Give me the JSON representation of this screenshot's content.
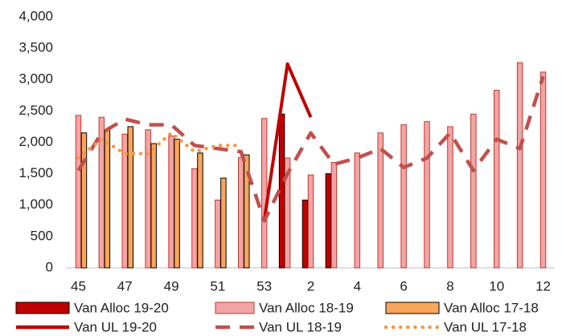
{
  "chart_data": {
    "type": "combo",
    "categories": [
      "45",
      null,
      "47",
      null,
      "49",
      null,
      "51",
      null,
      "53",
      null,
      "2",
      null,
      "4",
      null,
      "6",
      null,
      "8",
      null,
      "10",
      null,
      "12"
    ],
    "ylim": [
      0,
      4000
    ],
    "yticks": [
      0,
      500,
      {
        "value": 1000,
        "label": "1,000"
      },
      {
        "value": 1500,
        "label": "1,500"
      },
      {
        "value": 2000,
        "label": "2,000"
      },
      {
        "value": 2500,
        "label": "2,500"
      },
      {
        "value": 3000,
        "label": "3,000"
      },
      {
        "value": 3500,
        "label": "3,500"
      },
      {
        "value": 4000,
        "label": "4,000"
      }
    ],
    "grid": false,
    "legend": "bottom",
    "series": [
      {
        "name": "Van Alloc 19-20",
        "kind": "bar",
        "color": "#c00000",
        "edge": "#000000",
        "values": [
          null,
          null,
          null,
          null,
          null,
          null,
          null,
          null,
          null,
          2450,
          1080,
          1500,
          null,
          null,
          null,
          null,
          null,
          null,
          null,
          null,
          null
        ]
      },
      {
        "name": "Van Alloc 18-19",
        "kind": "bar",
        "color": "#f2a4a6",
        "edge": "#c0392b",
        "values": [
          2430,
          2400,
          2130,
          2200,
          2100,
          1580,
          1080,
          1760,
          2380,
          1750,
          1480,
          1680,
          1830,
          2150,
          2280,
          2330,
          2250,
          2450,
          2830,
          3270,
          3120
        ]
      },
      {
        "name": "Van Alloc 17-18",
        "kind": "bar",
        "color": "#f9a65a",
        "edge": "#000000",
        "values": [
          2150,
          2200,
          2250,
          1980,
          2050,
          1830,
          1430,
          1800,
          null,
          null,
          null,
          null,
          null,
          null,
          null,
          null,
          null,
          null,
          null,
          null,
          null
        ]
      },
      {
        "name": "Van UL 19-20",
        "kind": "line",
        "style": "solid",
        "color": "#c00000",
        "values": [
          null,
          null,
          null,
          null,
          null,
          null,
          null,
          null,
          750,
          3250,
          2400,
          null,
          null,
          null,
          null,
          null,
          null,
          null,
          null,
          null,
          null
        ]
      },
      {
        "name": "Van UL 18-19",
        "kind": "line",
        "style": "dashed",
        "color": "#c0504d",
        "values": [
          1550,
          2150,
          2370,
          2280,
          2280,
          1950,
          1900,
          1850,
          750,
          1500,
          2150,
          1650,
          1750,
          1900,
          1600,
          1750,
          2150,
          1550,
          2050,
          1900,
          3050
        ]
      },
      {
        "name": "Van UL 17-18",
        "kind": "line",
        "style": "dotted",
        "color": "#f79646",
        "values": [
          1750,
          2050,
          1820,
          1820,
          2150,
          1850,
          1950,
          1950,
          null,
          null,
          null,
          null,
          null,
          null,
          null,
          null,
          null,
          null,
          null,
          null,
          null
        ]
      }
    ]
  }
}
